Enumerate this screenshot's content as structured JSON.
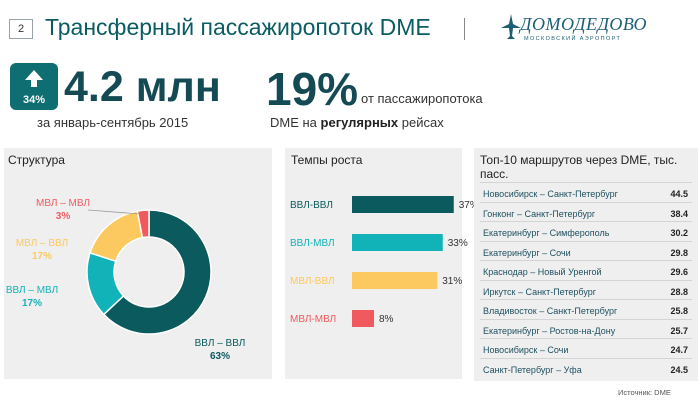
{
  "page_number": "2",
  "title": "Трансферный пассажиропоток DME",
  "logo": {
    "name": "ДОМОДЕДОВО",
    "subtitle": "МОСКОВСКИЙ АЭРОПОРТ"
  },
  "growth_badge": "34%",
  "headline_value": "4.2 млн",
  "headline_period": "за январь-сентябрь 2015",
  "share_value": "19%",
  "share_desc_line1": "от пассажиропотока",
  "share_desc_prefix": "DME на ",
  "share_desc_bold": "регулярных",
  "share_desc_suffix": " рейсах",
  "source": "Источник: DME",
  "colors": {
    "teal_dark": "#0b5a5d",
    "teal_light": "#12b3b8",
    "yellow": "#fbc95f",
    "red": "#f05a5f"
  },
  "chart_data": [
    {
      "type": "pie",
      "title": "Структура",
      "labels": [
        "ВВЛ – ВВЛ",
        "ВВЛ – МВЛ",
        "МВЛ – ВВЛ",
        "МВЛ – МВЛ"
      ],
      "values": [
        63,
        17,
        17,
        3
      ],
      "value_labels": [
        "63%",
        "17%",
        "17%",
        "3%"
      ],
      "colors": [
        "#0b5a5d",
        "#12b3b8",
        "#fbc95f",
        "#f05a5f"
      ]
    },
    {
      "type": "bar",
      "title": "Темпы роста",
      "categories": [
        "ВВЛ-ВВЛ",
        "ВВЛ-МВЛ",
        "МВЛ-ВВЛ",
        "МВЛ-МВЛ"
      ],
      "values": [
        37,
        33,
        31,
        8
      ],
      "value_labels": [
        "37%",
        "33%",
        "31%",
        "8%"
      ],
      "colors": [
        "#0b5a5d",
        "#12b3b8",
        "#fbc95f",
        "#f05a5f"
      ],
      "xlim": [
        0,
        40
      ]
    },
    {
      "type": "table",
      "title": "Топ-10 маршрутов через DME, тыс. пасс.",
      "rows": [
        {
          "route": "Новосибирск – Санкт-Петербург",
          "value": "44.5"
        },
        {
          "route": "Гонконг – Санкт-Петербург",
          "value": "38.4"
        },
        {
          "route": "Екатеринбург – Симферополь",
          "value": "30.2"
        },
        {
          "route": "Екатеринбург – Сочи",
          "value": "29.8"
        },
        {
          "route": "Краснодар – Новый Уренгой",
          "value": "29.6"
        },
        {
          "route": "Иркутск – Санкт-Петербург",
          "value": "28.8"
        },
        {
          "route": "Владивосток – Санкт-Петербург",
          "value": "25.8"
        },
        {
          "route": "Екатеринбург – Ростов-на-Дону",
          "value": "25.7"
        },
        {
          "route": "Новосибирск – Сочи",
          "value": "24.7"
        },
        {
          "route": "Санкт-Петербург – Уфа",
          "value": "24.5"
        }
      ]
    }
  ]
}
